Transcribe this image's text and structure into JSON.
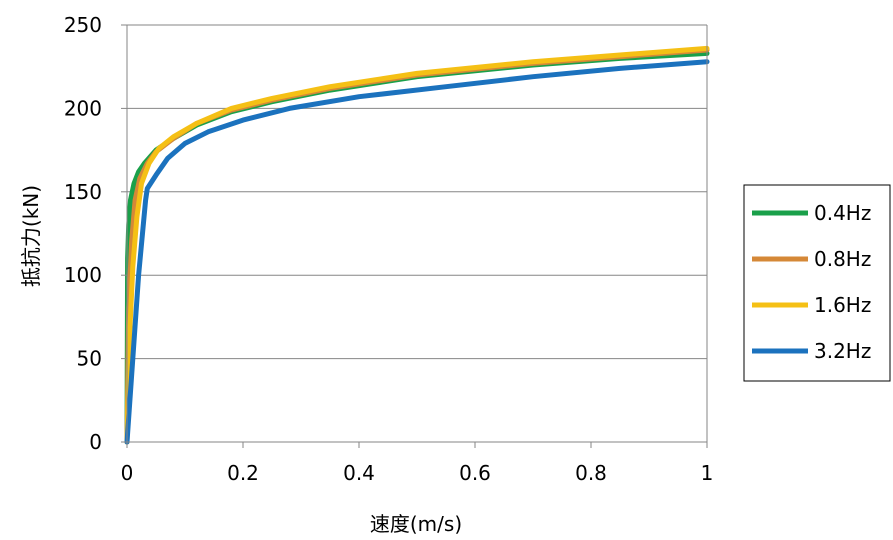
{
  "chart_data": {
    "type": "line",
    "xlabel": "速度(m/s)",
    "ylabel": "抵抗力(kN)",
    "xlim": [
      0,
      1
    ],
    "ylim": [
      0,
      250
    ],
    "x_ticks": [
      0,
      0.2,
      0.4,
      0.6,
      0.8,
      1
    ],
    "x_tick_labels": [
      "0",
      "0.2",
      "0.4",
      "0.6",
      "0.8",
      "1"
    ],
    "y_ticks": [
      0,
      50,
      100,
      150,
      200,
      250
    ],
    "y_tick_labels": [
      "0",
      "50",
      "100",
      "150",
      "200",
      "250"
    ],
    "grid": "horizontal",
    "legend_position": "right",
    "series": [
      {
        "name": "0.4Hz",
        "color": "#1aa04a",
        "points": [
          [
            0,
            0
          ],
          [
            0.001,
            110
          ],
          [
            0.003,
            130
          ],
          [
            0.006,
            145
          ],
          [
            0.012,
            155
          ],
          [
            0.02,
            162
          ],
          [
            0.03,
            167
          ],
          [
            0.05,
            175
          ],
          [
            0.08,
            182
          ],
          [
            0.12,
            190
          ],
          [
            0.18,
            198
          ],
          [
            0.25,
            204
          ],
          [
            0.35,
            211
          ],
          [
            0.5,
            219
          ],
          [
            0.7,
            226
          ],
          [
            0.85,
            230
          ],
          [
            1,
            233
          ]
        ]
      },
      {
        "name": "0.8Hz",
        "color": "#d58837",
        "points": [
          [
            0,
            0
          ],
          [
            0.003,
            80
          ],
          [
            0.008,
            120
          ],
          [
            0.014,
            145
          ],
          [
            0.022,
            158
          ],
          [
            0.035,
            167
          ],
          [
            0.05,
            174
          ],
          [
            0.08,
            182
          ],
          [
            0.12,
            191
          ],
          [
            0.18,
            199
          ],
          [
            0.25,
            205
          ],
          [
            0.35,
            212
          ],
          [
            0.5,
            220
          ],
          [
            0.7,
            227
          ],
          [
            0.85,
            231
          ],
          [
            1,
            235
          ]
        ]
      },
      {
        "name": "1.6Hz",
        "color": "#f5c015",
        "points": [
          [
            0,
            0
          ],
          [
            0.004,
            60
          ],
          [
            0.01,
            105
          ],
          [
            0.017,
            135
          ],
          [
            0.025,
            155
          ],
          [
            0.038,
            167
          ],
          [
            0.055,
            176
          ],
          [
            0.08,
            183
          ],
          [
            0.12,
            191
          ],
          [
            0.18,
            200
          ],
          [
            0.25,
            206
          ],
          [
            0.35,
            213
          ],
          [
            0.5,
            221
          ],
          [
            0.7,
            228
          ],
          [
            0.85,
            232
          ],
          [
            1,
            236
          ]
        ]
      },
      {
        "name": "3.2Hz",
        "color": "#1b72be",
        "points": [
          [
            0,
            0
          ],
          [
            0.01,
            50
          ],
          [
            0.02,
            100
          ],
          [
            0.032,
            145
          ],
          [
            0.035,
            152
          ],
          [
            0.05,
            160
          ],
          [
            0.07,
            170
          ],
          [
            0.1,
            179
          ],
          [
            0.14,
            186
          ],
          [
            0.2,
            193
          ],
          [
            0.28,
            200
          ],
          [
            0.4,
            207
          ],
          [
            0.55,
            213
          ],
          [
            0.7,
            219
          ],
          [
            0.85,
            224
          ],
          [
            1,
            228
          ]
        ]
      }
    ]
  }
}
